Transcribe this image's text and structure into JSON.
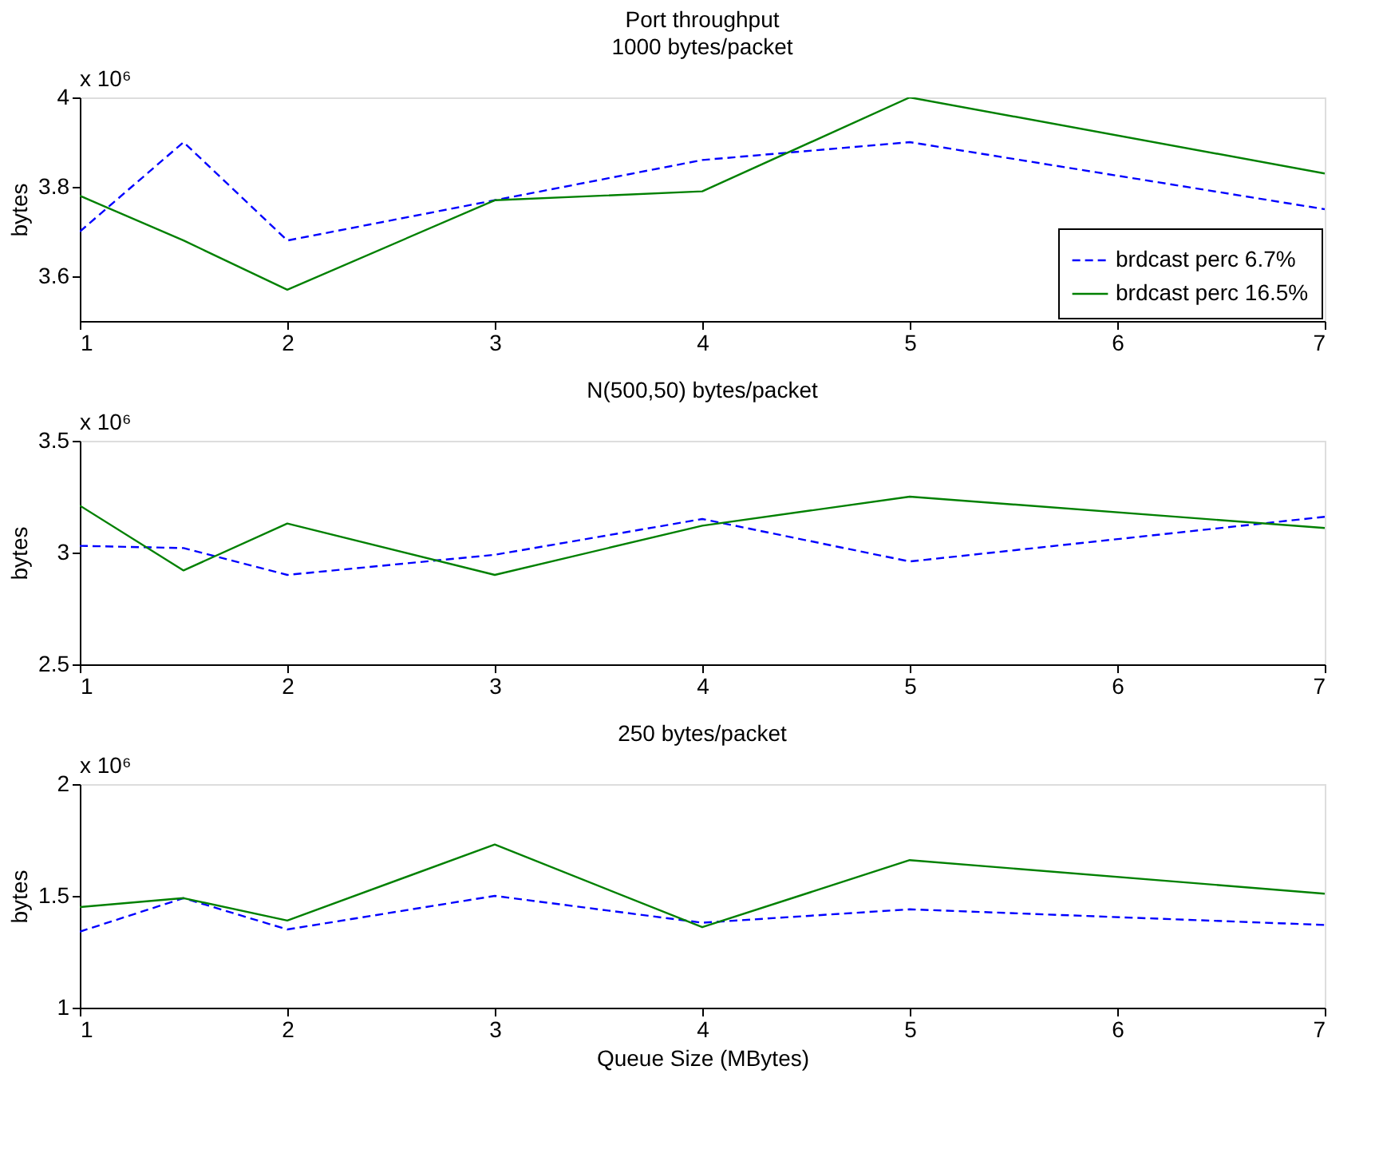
{
  "chart_data": [
    {
      "type": "line",
      "title": "Port throughput",
      "subtitle": "1000 bytes/packet",
      "ylabel": "bytes",
      "annotations": [
        "x 10⁶"
      ],
      "x": [
        1,
        1.5,
        2,
        3,
        4,
        5,
        7
      ],
      "xlim": [
        1,
        7
      ],
      "xticks": [
        1,
        2,
        3,
        4,
        5,
        6,
        7
      ],
      "ylim": [
        3.5,
        4
      ],
      "yticks": [
        3.6,
        3.8,
        4
      ],
      "grid": false,
      "legend": "bottom right",
      "marker": "none",
      "series": [
        {
          "name": "brdcast perc 6.7%",
          "color": "#0000ff",
          "line_style": "dashed",
          "values": [
            3.7,
            3.9,
            3.68,
            3.77,
            3.86,
            3.9,
            3.75
          ]
        },
        {
          "name": "brdcast perc 16.5%",
          "color": "#008000",
          "line_style": "solid",
          "values": [
            3.78,
            3.68,
            3.57,
            3.77,
            3.79,
            4.0,
            3.83
          ]
        }
      ]
    },
    {
      "type": "line",
      "title": "N(500,50) bytes/packet",
      "ylabel": "bytes",
      "annotations": [
        "x 10⁶"
      ],
      "x": [
        1,
        1.5,
        2,
        3,
        4,
        5,
        7
      ],
      "xlim": [
        1,
        7
      ],
      "xticks": [
        1,
        2,
        3,
        4,
        5,
        6,
        7
      ],
      "ylim": [
        2.5,
        3.5
      ],
      "yticks": [
        2.5,
        3,
        3.5
      ],
      "grid": false,
      "legend": false,
      "marker": "none",
      "series": [
        {
          "color": "#0000ff",
          "line_style": "dashed",
          "values": [
            3.03,
            3.02,
            2.9,
            2.99,
            3.15,
            2.96,
            3.16
          ]
        },
        {
          "color": "#008000",
          "line_style": "solid",
          "values": [
            3.21,
            2.92,
            3.13,
            2.9,
            3.12,
            3.25,
            3.11
          ]
        }
      ]
    },
    {
      "type": "line",
      "title": "250 bytes/packet",
      "xlabel": "Queue Size (MBytes)",
      "ylabel": "bytes",
      "annotations": [
        "x 10⁶"
      ],
      "x": [
        1,
        1.5,
        2,
        3,
        4,
        5,
        7
      ],
      "xlim": [
        1,
        7
      ],
      "xticks": [
        1,
        2,
        3,
        4,
        5,
        6,
        7
      ],
      "ylim": [
        1,
        2
      ],
      "yticks": [
        1,
        1.5,
        2
      ],
      "grid": false,
      "legend": false,
      "marker": "none",
      "series": [
        {
          "color": "#0000ff",
          "line_style": "dashed",
          "values": [
            1.34,
            1.49,
            1.35,
            1.5,
            1.38,
            1.44,
            1.37
          ]
        },
        {
          "color": "#008000",
          "line_style": "solid",
          "values": [
            1.45,
            1.49,
            1.39,
            1.73,
            1.36,
            1.66,
            1.51
          ]
        }
      ]
    }
  ]
}
